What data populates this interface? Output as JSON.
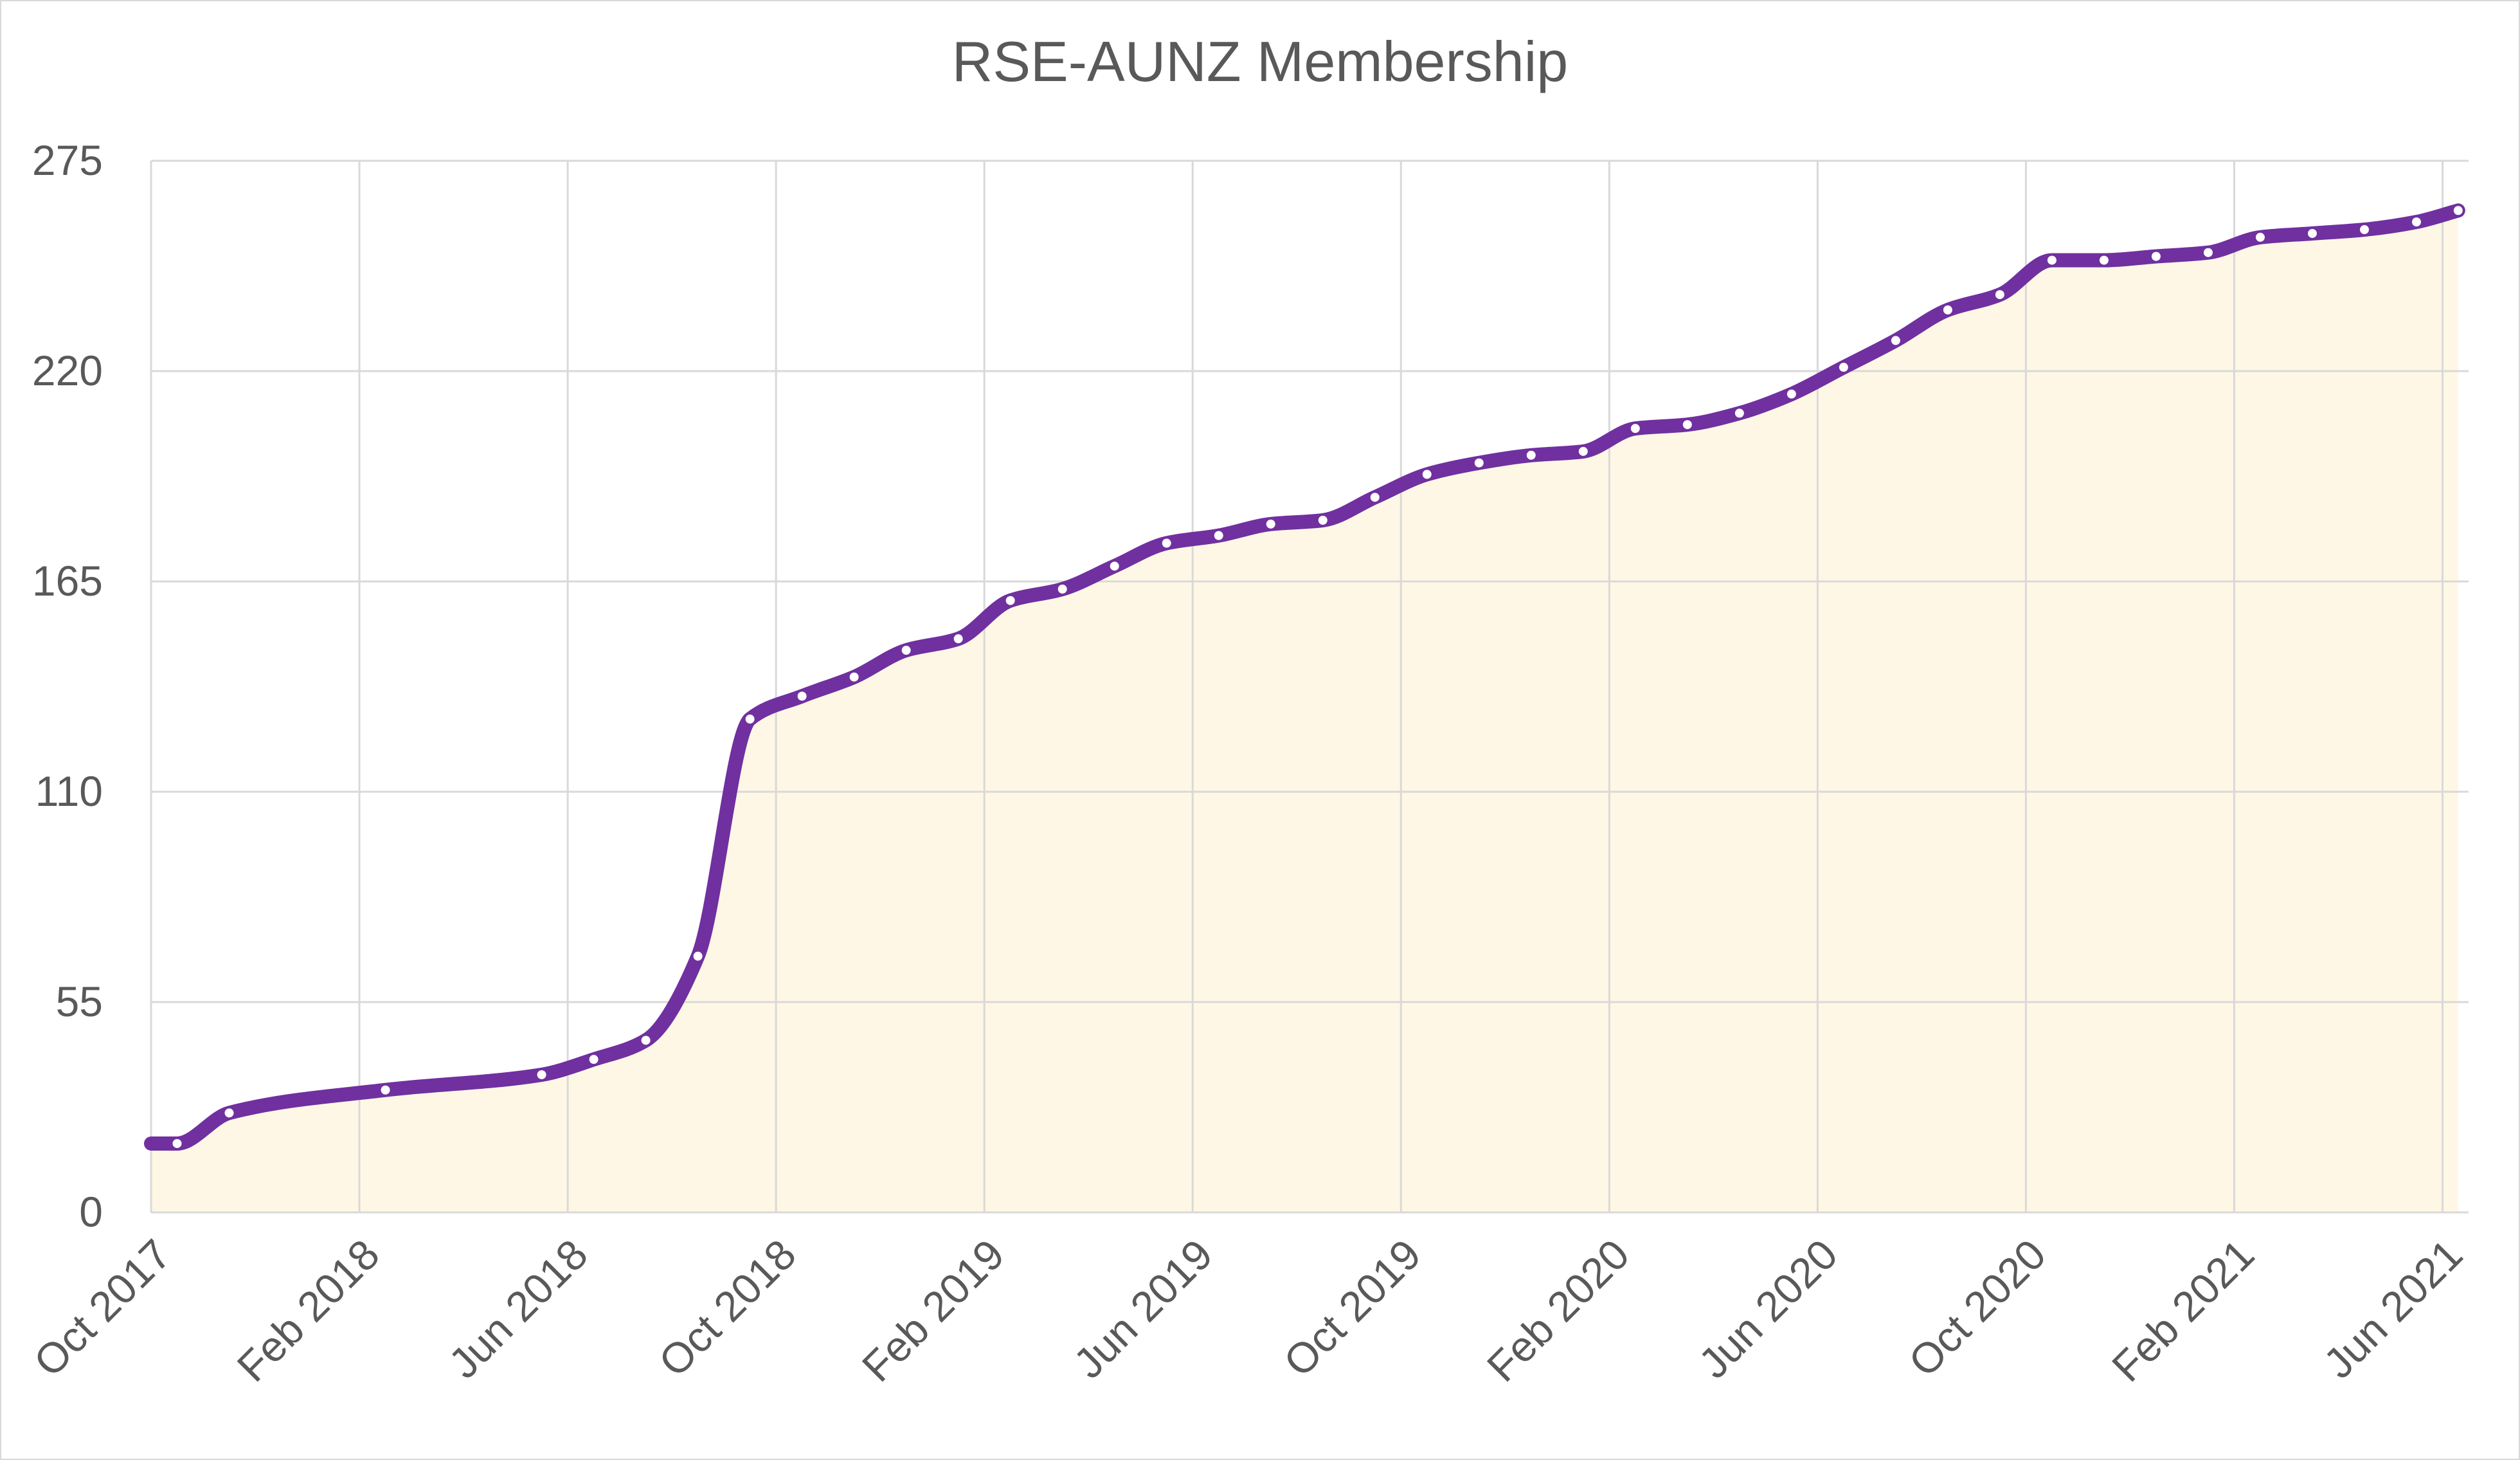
{
  "chart_data": {
    "type": "area",
    "title": "RSE-AUNZ Membership",
    "xlabel": "",
    "ylabel": "",
    "ylim": [
      0,
      275
    ],
    "yticks": [
      0,
      55,
      110,
      165,
      220,
      275
    ],
    "xlim": [
      0,
      44.5
    ],
    "xticks": [
      {
        "x": 0,
        "label": "Oct 2017"
      },
      {
        "x": 4,
        "label": "Feb 2018"
      },
      {
        "x": 8,
        "label": "Jun 2018"
      },
      {
        "x": 12,
        "label": "Oct 2018"
      },
      {
        "x": 16,
        "label": "Feb 2019"
      },
      {
        "x": 20,
        "label": "Jun 2019"
      },
      {
        "x": 24,
        "label": "Oct 2019"
      },
      {
        "x": 28,
        "label": "Feb 2020"
      },
      {
        "x": 32,
        "label": "Jun 2020"
      },
      {
        "x": 36,
        "label": "Oct 2020"
      },
      {
        "x": 40,
        "label": "Feb 2021"
      },
      {
        "x": 44,
        "label": "Jun 2021"
      }
    ],
    "grid": true,
    "series": [
      {
        "name": "Membership",
        "x": [
          0.5,
          1.5,
          4.5,
          7.5,
          8.5,
          9.5,
          10.5,
          11.5,
          12.5,
          13.5,
          14.5,
          15.5,
          16.5,
          17.5,
          18.5,
          19.5,
          20.5,
          21.5,
          22.5,
          23.5,
          24.5,
          25.5,
          26.5,
          27.5,
          28.5,
          29.5,
          30.5,
          31.5,
          32.5,
          33.5,
          34.5,
          35.5,
          36.5,
          37.5,
          38.5,
          39.5,
          40.5,
          41.5,
          42.5,
          43.5,
          44.3
        ],
        "values": [
          18,
          26,
          32,
          36,
          40,
          45,
          67,
          129,
          135,
          140,
          147,
          150,
          160,
          163,
          169,
          175,
          177,
          180,
          181,
          187,
          193,
          196,
          198,
          199,
          205,
          206,
          209,
          214,
          221,
          228,
          236,
          240,
          249,
          249,
          250,
          251,
          255,
          256,
          257,
          259,
          262
        ]
      }
    ],
    "colors": {
      "line": "#7030a0",
      "area_fill": "#fff7e5",
      "marker_fill": "#ffffff",
      "grid": "#d9d9d9",
      "text": "#595959"
    }
  }
}
